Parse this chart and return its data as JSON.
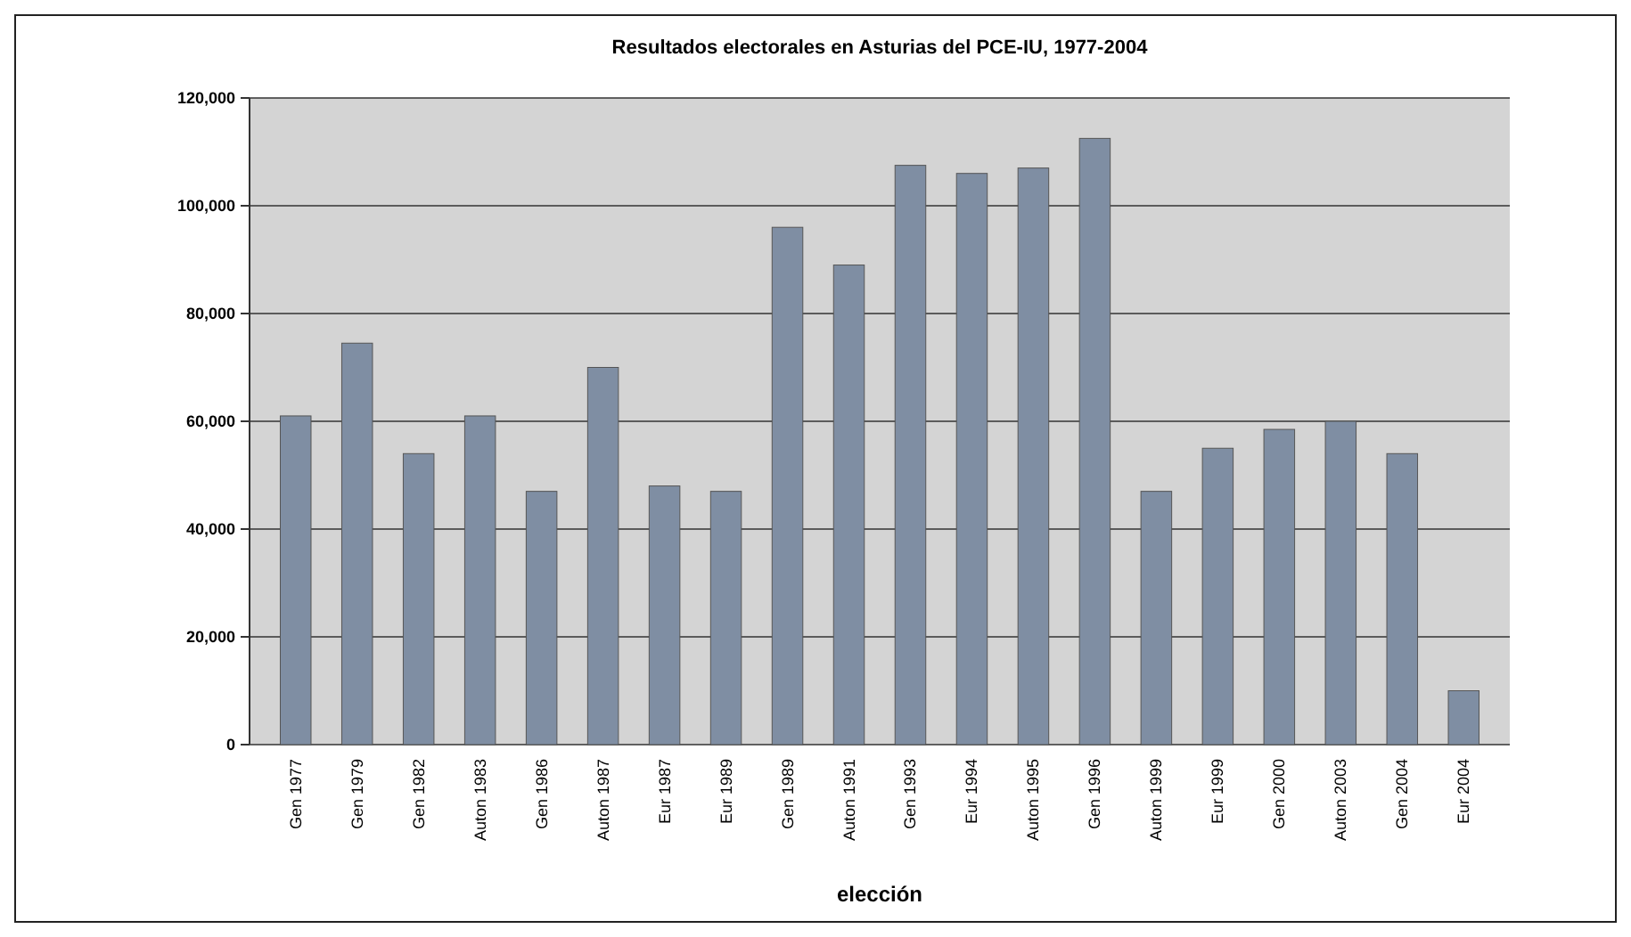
{
  "chart_data": {
    "type": "bar",
    "title": "Resultados electorales en Asturias del PCE-IU, 1977-2004",
    "xlabel": "elección",
    "categories": [
      "Gen 1977",
      "Gen 1979",
      "Gen 1982",
      "Auton 1983",
      "Gen 1986",
      "Auton 1987",
      "Eur 1987",
      "Eur 1989",
      "Gen 1989",
      "Auton 1991",
      "Gen 1993",
      "Eur 1994",
      "Auton 1995",
      "Gen 1996",
      "Auton 1999",
      "Eur 1999",
      "Gen 2000",
      "Auton 2003",
      "Gen 2004",
      "Eur 2004"
    ],
    "values": [
      61000,
      74500,
      54000,
      61000,
      47000,
      70000,
      48000,
      47000,
      96000,
      89000,
      107500,
      106000,
      107000,
      112500,
      47000,
      55000,
      58500,
      60000,
      54000,
      10000
    ],
    "color": "#7f8ea3",
    "ylim": [
      0,
      120000
    ],
    "yticks": [
      {
        "value": 0,
        "label": "0"
      },
      {
        "value": 20000,
        "label": "20,000"
      },
      {
        "value": 40000,
        "label": "40,000"
      },
      {
        "value": 60000,
        "label": "60,000"
      },
      {
        "value": 80000,
        "label": "80,000"
      },
      {
        "value": 100000,
        "label": "100,000"
      },
      {
        "value": 120000,
        "label": "120,000"
      }
    ],
    "grid": "y"
  }
}
